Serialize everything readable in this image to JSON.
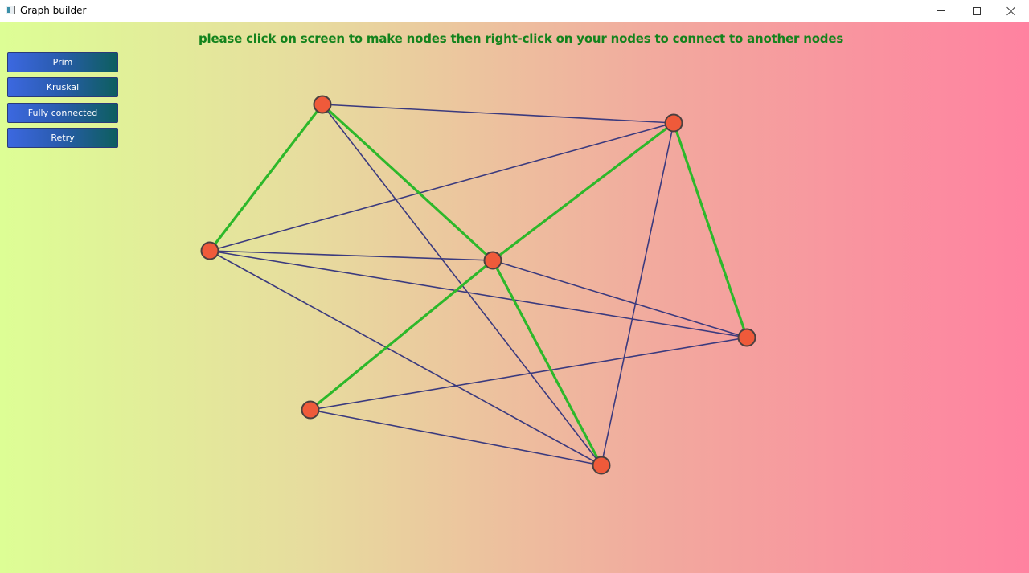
{
  "window": {
    "title": "Graph builder"
  },
  "header": {
    "instructions": "please click on screen to make nodes then right-click on your nodes to connect to another nodes"
  },
  "buttons": {
    "prim": "Prim",
    "kruskal": "Kruskal",
    "fully_connected": "Fully connected",
    "retry": "Retry"
  },
  "colors": {
    "node_fill": "#ef5a3a",
    "node_stroke": "#4a4040",
    "edge": "#3b3a7e",
    "tree_edge": "#2db82a"
  }
}
